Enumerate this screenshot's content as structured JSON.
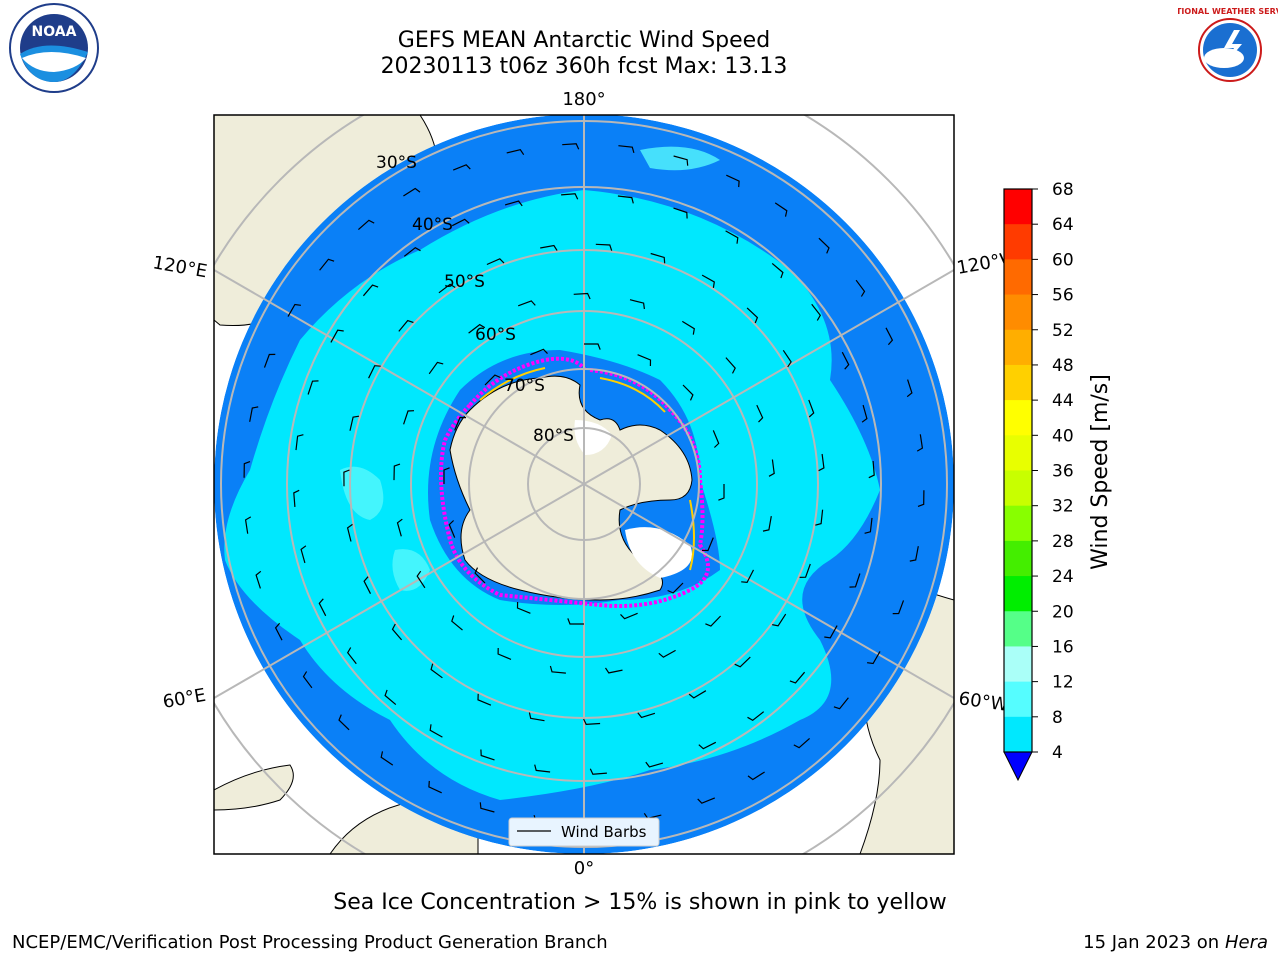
{
  "header": {
    "title_line1": "GEFS MEAN Antarctic Wind Speed",
    "title_line2": "20230113 t06z 360h fcst   Max: 13.13"
  },
  "logos": {
    "left": {
      "icon": "noaa-logo",
      "text": "NOAA"
    },
    "right": {
      "icon": "nws-logo",
      "text": "NATIONAL WEATHER SERVICE"
    }
  },
  "map": {
    "longitude_labels": {
      "top": "180°",
      "bottom": "0°",
      "upper_left": "120°E",
      "upper_right": "120°W",
      "lower_left": "60°E",
      "lower_right": "60°W"
    },
    "latitude_labels": [
      "30°S",
      "40°S",
      "50°S",
      "60°S",
      "70°S",
      "80°S"
    ],
    "legend": {
      "label": "Wind Barbs"
    },
    "colors": {
      "land": "#efedda",
      "ocean_low": "#0a80f7",
      "ocean_mid": "#00e8fe",
      "ocean_light": "#55f7fd",
      "sea_ice_edge": "#ff00ff",
      "grid": "#b8b8b8"
    }
  },
  "colorbar": {
    "label": "Wind Speed [m/s]",
    "ticks": [
      "68",
      "64",
      "60",
      "56",
      "52",
      "48",
      "44",
      "40",
      "36",
      "32",
      "28",
      "24",
      "20",
      "16",
      "12",
      "8",
      "4"
    ],
    "colors": [
      "#ff0000",
      "#ff3b00",
      "#ff6a00",
      "#ff8c00",
      "#ffae00",
      "#ffd000",
      "#ffff00",
      "#e8ff00",
      "#c8ff00",
      "#88ff00",
      "#44ee00",
      "#00ee00",
      "#55ff88",
      "#aafff8",
      "#55fdff",
      "#00e8fe",
      "#0a80f7"
    ],
    "extend_color": "#0000ff"
  },
  "caption": "Sea Ice Concentration > 15% is shown in pink to yellow",
  "footer": {
    "left": "NCEP/EMC/Verification Post Processing Product Generation Branch",
    "date": "15 Jan 2023 on ",
    "machine": "Hera"
  }
}
